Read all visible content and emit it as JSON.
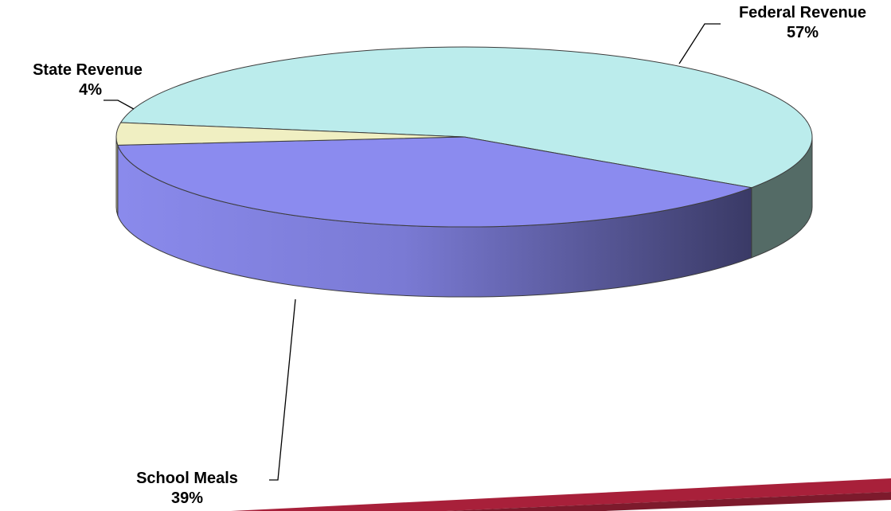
{
  "chart_data": {
    "type": "pie",
    "title": "",
    "three_d": true,
    "slices": [
      {
        "name": "Federal Revenue",
        "value": 57,
        "value_label": "57%",
        "color": "#bbecec",
        "side_color": "#546b66"
      },
      {
        "name": "School Meals",
        "value": 39,
        "value_label": "39%",
        "color": "#8b8bef",
        "side_color": "#6e6ed0"
      },
      {
        "name": "State Revenue",
        "value": 4,
        "value_label": "4%",
        "color": "#f0efc2",
        "side_color": "#c9c79a"
      }
    ],
    "legend": "none"
  },
  "decoration": {
    "accent_color": "#a8203a"
  }
}
